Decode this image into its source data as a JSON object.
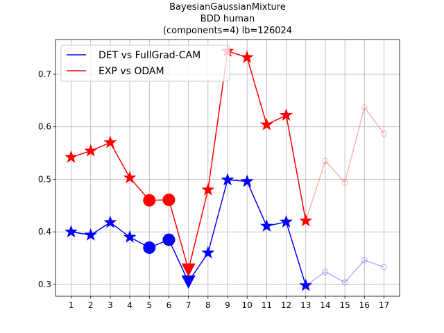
{
  "chart_data": {
    "type": "line",
    "title": [
      "BayesianGaussianMixture",
      "BDD human",
      "(components=4) lb=126024"
    ],
    "x": [
      1,
      2,
      3,
      4,
      5,
      6,
      7,
      8,
      9,
      10,
      11,
      12,
      13,
      14,
      15,
      16,
      17
    ],
    "xlim": [
      0.2,
      17.8
    ],
    "xticks": [
      1,
      2,
      3,
      4,
      5,
      6,
      7,
      8,
      9,
      10,
      11,
      12,
      13,
      14,
      15,
      16,
      17
    ],
    "ylim": [
      0.2775,
      0.766
    ],
    "yticks": [
      0.3,
      0.4,
      0.5,
      0.6,
      0.7
    ],
    "grid": true,
    "legend": "upper left",
    "markers": [
      "star",
      "star",
      "star",
      "star",
      "circle",
      "circle",
      "triangle_down",
      "star",
      "star",
      "star",
      "star",
      "star",
      "star",
      "faded_circle",
      "faded_circle",
      "faded_circle",
      "faded_circle"
    ],
    "series": [
      {
        "name": "DET vs FullGrad-CAM",
        "color": "#0000ff",
        "values": [
          0.4,
          0.394,
          0.418,
          0.39,
          0.37,
          0.385,
          0.305,
          0.36,
          0.499,
          0.496,
          0.411,
          0.419,
          0.298,
          0.324,
          0.304,
          0.346,
          0.333
        ]
      },
      {
        "name": "EXP vs ODAM",
        "color": "#ff0000",
        "values": [
          0.542,
          0.554,
          0.57,
          0.503,
          0.46,
          0.461,
          0.328,
          0.48,
          0.744,
          0.732,
          0.604,
          0.622,
          0.421,
          0.535,
          0.494,
          0.637,
          0.587
        ]
      }
    ]
  }
}
